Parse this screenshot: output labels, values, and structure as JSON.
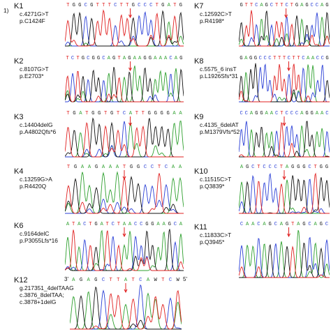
{
  "figure": {
    "marker": "1)",
    "colors": {
      "A": "#2ea02e",
      "C": "#2a3fd6",
      "G": "#111111",
      "T": "#e02020"
    },
    "panels": [
      {
        "id": "K1",
        "lines": [
          "c.4271G>T",
          "p.C1424F"
        ],
        "sequence": "TGGCGTTTCTTGCCCTGATG"
      },
      {
        "id": "K2",
        "lines": [
          "c.8107G>T",
          "p.E2703*"
        ],
        "sequence": "TCTGCGGCAGTAGAAGGAAACAG"
      },
      {
        "id": "K3",
        "lines": [
          "c.14404delG",
          "p.A4802Qfs*6"
        ],
        "sequence": "TGATGGTGTCATTGGGGAA"
      },
      {
        "id": "K4",
        "lines": [
          "c.13259G>A",
          "p.R4420Q"
        ],
        "sequence": "TGAAGAAATGGCCTCAA"
      },
      {
        "id": "K6",
        "lines": [
          "c.9164delC",
          "p.P3055Lfs*16"
        ],
        "sequence": "ATACTGATCTAACCGGAAGCA"
      },
      {
        "id": "K7",
        "lines": [
          "c.12592C>T",
          "p.R4198*"
        ],
        "sequence": "GTTCAGCTTCTGAGCCAG"
      },
      {
        "id": "K8",
        "lines": [
          "c.5575_6 insT",
          "p.L1926Sfs*31"
        ],
        "sequence": "GAGGCCCTTTCTTCAACCG"
      },
      {
        "id": "K9",
        "lines": [
          "c.4135_6delAT",
          "p.M1379Vfs*52"
        ],
        "sequence": "CCAGGAACTCCCAGGAAC"
      },
      {
        "id": "K10",
        "lines": [
          "c.11515C>T",
          "p.Q3839*"
        ],
        "sequence": "AGCTCCCTAGGGCTGG"
      },
      {
        "id": "K11",
        "lines": [
          "c.11833C>T",
          "p.Q3945*"
        ],
        "sequence": "CAACAGCAGTAGCAGC"
      },
      {
        "id": "K12",
        "lines": [
          "g.217351_4delTAAG",
          "c.3876_8delTAA;",
          "c.3878+1delG"
        ],
        "sequence": "AGAGCTTATCAWTCW",
        "prime3": "3'",
        "prime5": "5'"
      }
    ]
  }
}
